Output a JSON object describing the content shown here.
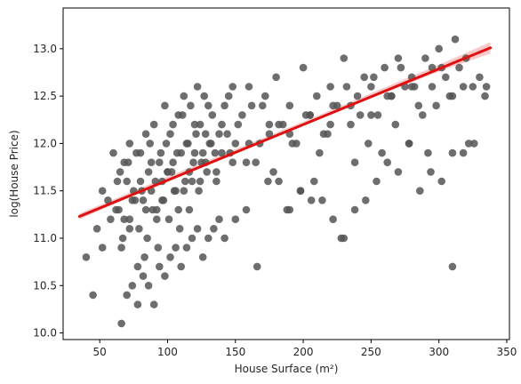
{
  "chart_data": {
    "type": "scatter",
    "title": "",
    "xlabel": "House Surface (m²)",
    "ylabel": "log(House Price)",
    "xlim": [
      23,
      352
    ],
    "ylim": [
      9.93,
      13.43
    ],
    "xticks": [
      50,
      100,
      150,
      200,
      250,
      300,
      350
    ],
    "yticks": [
      10.0,
      10.5,
      11.0,
      11.5,
      12.0,
      12.5,
      13.0
    ],
    "grid": false,
    "legend": "none",
    "colors": {
      "points": "#555555",
      "regression": "#e01010",
      "ci_band": "#f4a5a5"
    },
    "points": {
      "x": [
        40,
        48,
        52,
        56,
        60,
        62,
        65,
        66,
        68,
        70,
        72,
        72,
        75,
        78,
        80,
        82,
        84,
        85,
        88,
        90,
        92,
        95,
        96,
        98,
        100,
        102,
        105,
        108,
        110,
        112,
        115,
        118,
        120,
        122,
        125,
        128,
        130,
        135,
        140,
        145,
        150,
        155,
        160,
        165,
        170,
        175,
        180,
        185,
        190,
        195,
        200,
        205,
        210,
        215,
        220,
        225,
        230,
        235,
        240,
        245,
        250,
        255,
        260,
        265,
        270,
        275,
        280,
        285,
        290,
        295,
        300,
        305,
        310,
        315,
        320,
        325,
        330,
        335,
        45,
        52,
        58,
        63,
        67,
        71,
        74,
        77,
        79,
        81,
        83,
        86,
        87,
        89,
        91,
        93,
        94,
        97,
        99,
        101,
        103,
        104,
        106,
        107,
        109,
        111,
        113,
        114,
        116,
        117,
        119,
        121,
        123,
        124,
        126,
        127,
        129,
        131,
        133,
        136,
        138,
        142,
        146,
        148,
        152,
        158,
        162,
        168,
        172,
        178,
        182,
        188,
        192,
        198,
        202,
        208,
        212,
        218,
        222,
        228,
        232,
        238,
        242,
        248,
        252,
        258,
        262,
        268,
        272,
        278,
        282,
        288,
        292,
        298,
        302,
        308,
        312,
        318,
        322,
        66,
        70,
        74,
        78,
        82,
        86,
        90,
        94,
        98,
        102,
        106,
        110,
        114,
        118,
        122,
        126,
        130,
        134,
        138,
        142,
        150,
        158,
        166,
        174,
        182,
        190,
        198,
        206,
        214,
        222,
        230,
        238,
        246,
        254,
        262,
        270,
        278,
        286,
        294,
        302,
        310,
        318,
        326,
        334,
        64,
        68,
        72,
        76,
        80,
        84,
        88,
        92,
        96,
        100,
        104,
        108,
        112,
        116,
        120,
        124,
        128,
        132,
        136,
        140,
        144,
        148,
        160,
        175,
        190,
        205,
        220,
        235,
        250,
        265,
        280,
        295,
        310
      ],
      "y": [
        10.8,
        11.1,
        11.5,
        11.4,
        11.9,
        11.3,
        11.7,
        10.9,
        11.8,
        11.6,
        11.2,
        12.0,
        11.5,
        10.7,
        11.9,
        11.4,
        12.1,
        11.0,
        11.8,
        12.2,
        11.3,
        11.9,
        11.6,
        12.4,
        11.7,
        12.1,
        11.5,
        12.3,
        11.9,
        12.5,
        12.0,
        11.6,
        12.2,
        12.6,
        11.8,
        12.1,
        12.4,
        11.9,
        12.2,
        12.5,
        12.0,
        12.3,
        12.6,
        11.8,
        12.4,
        12.1,
        12.7,
        12.2,
        12.4,
        12.0,
        12.8,
        12.3,
        12.5,
        12.1,
        12.6,
        12.4,
        12.9,
        12.2,
        12.5,
        12.7,
        12.6,
        12.3,
        12.8,
        12.5,
        12.9,
        12.6,
        12.7,
        12.4,
        12.9,
        12.6,
        13.0,
        12.7,
        12.5,
        12.8,
        12.9,
        12.6,
        12.7,
        12.6,
        10.4,
        10.9,
        11.2,
        11.6,
        11.0,
        11.8,
        11.4,
        11.9,
        11.1,
        11.5,
        10.8,
        11.7,
        12.0,
        11.3,
        11.6,
        10.9,
        11.8,
        11.4,
        12.0,
        11.2,
        11.7,
        12.2,
        11.5,
        11.9,
        11.1,
        12.3,
        11.6,
        12.0,
        11.3,
        12.4,
        11.8,
        12.1,
        11.5,
        12.2,
        11.9,
        12.5,
        11.7,
        12.0,
        12.3,
        11.6,
        12.1,
        12.4,
        11.9,
        12.6,
        12.2,
        11.8,
        12.4,
        12.0,
        12.5,
        11.7,
        12.2,
        11.3,
        12.0,
        11.5,
        12.3,
        11.6,
        11.9,
        12.1,
        12.4,
        11.0,
        12.6,
        11.8,
        12.3,
        12.0,
        12.7,
        11.9,
        12.5,
        12.2,
        12.8,
        12.0,
        12.6,
        12.3,
        11.9,
        12.4,
        12.8,
        12.5,
        13.1,
        12.6,
        12.0,
        10.1,
        10.4,
        10.5,
        10.3,
        10.6,
        10.5,
        10.3,
        10.7,
        10.6,
        10.8,
        10.9,
        10.7,
        10.9,
        11.0,
        11.1,
        10.8,
        11.0,
        11.1,
        11.2,
        11.0,
        11.2,
        11.3,
        10.7,
        11.6,
        11.6,
        11.3,
        11.5,
        11.4,
        11.4,
        11.2,
        11.0,
        11.3,
        11.4,
        11.6,
        11.8,
        11.7,
        12.0,
        11.5,
        11.7,
        11.6,
        11.9,
        11.9,
        12.0,
        12.5,
        11.3,
        11.2,
        11.1,
        11.4,
        11.6,
        11.3,
        11.5,
        11.2,
        11.4,
        11.7,
        11.8,
        11.3,
        11.5,
        11.7,
        11.9,
        11.6,
        11.8,
        12.0,
        11.7,
        11.9,
        12.1,
        11.8,
        12.0,
        12.2,
        12.1,
        12.3,
        12.2,
        12.4,
        12.3,
        12.5,
        12.6,
        12.8,
        10.7
      ]
    },
    "regression": {
      "x": [
        35,
        338
      ],
      "y": [
        11.23,
        13.01
      ]
    },
    "ci_band": {
      "x": [
        35,
        100,
        200,
        300,
        338
      ],
      "low": [
        11.2,
        11.61,
        12.2,
        12.76,
        12.95
      ],
      "high": [
        11.26,
        11.65,
        12.23,
        12.83,
        13.07
      ]
    }
  }
}
